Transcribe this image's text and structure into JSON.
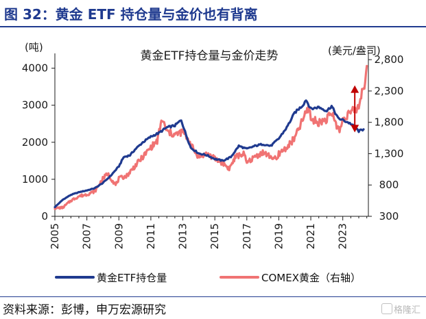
{
  "page": {
    "figure_title": "图 32：黄金 ETF 持仓量与金价也有背离",
    "source": "资料来源：彭博，申万宏源研究",
    "watermark": "格隆汇"
  },
  "chart_data": {
    "type": "line",
    "title": "黄金ETF持仓量与金价走势",
    "y_left_label": "(吨)",
    "y_right_label": "(美元/盎司)",
    "y_left_range": [
      0,
      4400
    ],
    "y_right_range": [
      300,
      2900
    ],
    "x_range": [
      2005,
      2024.6
    ],
    "y_left_ticks": [
      "0",
      "1000",
      "2000",
      "3000",
      "4000"
    ],
    "y_right_ticks": [
      "300",
      "800",
      "1,300",
      "1,800",
      "2,300",
      "2,800"
    ],
    "x_ticks": [
      "2005",
      "2007",
      "2009",
      "2011",
      "2013",
      "2015",
      "2017",
      "2019",
      "2021",
      "2023"
    ],
    "grid": false,
    "legend_position": "bottom",
    "annotation": "double-headed arrow marking divergence near 2024",
    "colors": {
      "etf": "#1f3a8f",
      "gold": "#f07373",
      "arrow": "#c00000"
    },
    "series": [
      {
        "name": "黄金ETF持仓量",
        "axis": "left",
        "x": [
          2005,
          2005.5,
          2006,
          2006.5,
          2007,
          2007.5,
          2008,
          2008.5,
          2009,
          2009.3,
          2009.7,
          2010,
          2010.5,
          2011,
          2011.5,
          2012,
          2012.5,
          2012.9,
          2013.2,
          2013.5,
          2014,
          2014.5,
          2015,
          2015.5,
          2016,
          2016.5,
          2017,
          2017.5,
          2018,
          2018.5,
          2019,
          2019.5,
          2020,
          2020.5,
          2020.7,
          2021,
          2021.5,
          2022,
          2022.3,
          2022.7,
          2023,
          2023.5,
          2024,
          2024.3
        ],
        "values": [
          250,
          450,
          580,
          650,
          700,
          760,
          900,
          1100,
          1350,
          1600,
          1650,
          1800,
          2000,
          2150,
          2250,
          2400,
          2450,
          2600,
          2200,
          1850,
          1700,
          1650,
          1550,
          1500,
          1600,
          1900,
          1820,
          1900,
          1950,
          1900,
          2100,
          2400,
          2800,
          3000,
          3150,
          2900,
          2950,
          2850,
          2980,
          2650,
          2600,
          2500,
          2300,
          2350
        ]
      },
      {
        "name": "COMEX黄金（右轴）",
        "axis": "right",
        "x": [
          2005,
          2005.5,
          2006,
          2006.5,
          2007,
          2007.5,
          2008,
          2008.3,
          2008.8,
          2009,
          2009.5,
          2010,
          2010.5,
          2011,
          2011.4,
          2011.7,
          2012,
          2012.5,
          2013,
          2013.4,
          2013.7,
          2014,
          2014.5,
          2015,
          2015.5,
          2015.9,
          2016.3,
          2016.8,
          2017,
          2017.5,
          2018,
          2018.5,
          2018.9,
          2019,
          2019.5,
          2020,
          2020.6,
          2020.9,
          2021,
          2021.5,
          2022,
          2022.3,
          2022.8,
          2023,
          2023.4,
          2023.8,
          2024,
          2024.2,
          2024.35,
          2024.5
        ],
        "values": [
          430,
          440,
          550,
          620,
          650,
          700,
          900,
          980,
          800,
          900,
          950,
          1100,
          1250,
          1400,
          1500,
          1850,
          1650,
          1600,
          1650,
          1500,
          1350,
          1250,
          1300,
          1220,
          1150,
          1060,
          1250,
          1300,
          1150,
          1250,
          1320,
          1250,
          1200,
          1300,
          1400,
          1550,
          1900,
          2050,
          1850,
          1800,
          1850,
          1950,
          1650,
          1850,
          1950,
          2000,
          2050,
          2300,
          2400,
          2700
        ]
      }
    ]
  }
}
